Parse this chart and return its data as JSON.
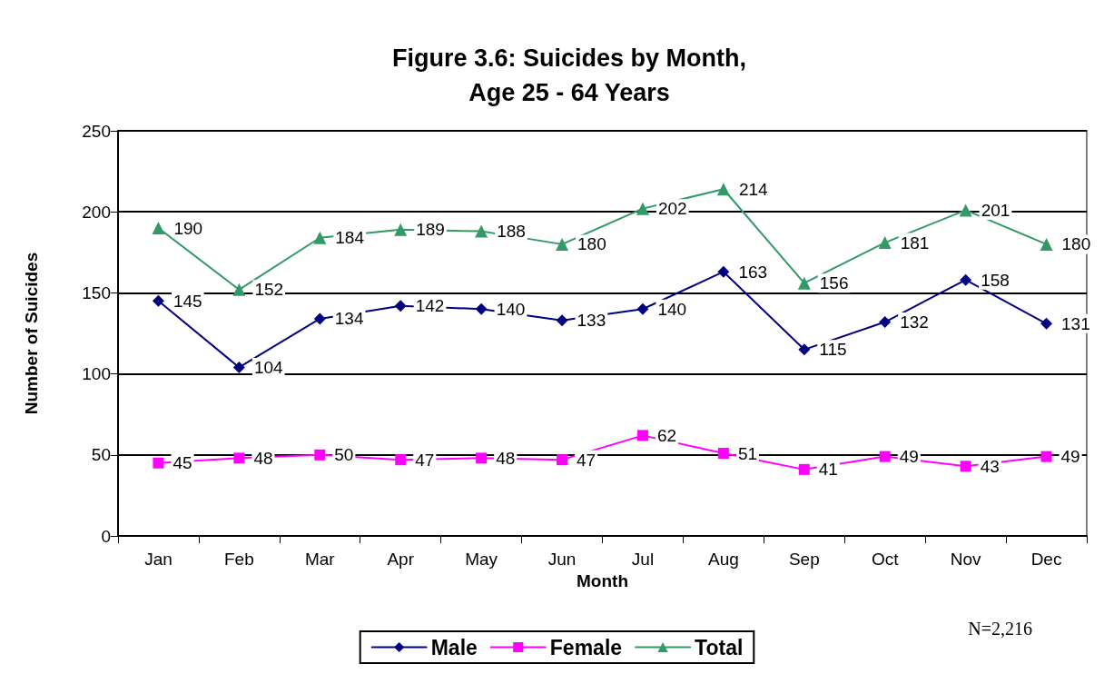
{
  "chart_data": {
    "type": "line",
    "title": "Figure 3.6: Suicides by Month,\nAge 25 - 64 Years",
    "xlabel": "Month",
    "ylabel": "Number of Suicides",
    "categories": [
      "Jan",
      "Feb",
      "Mar",
      "Apr",
      "May",
      "Jun",
      "Jul",
      "Aug",
      "Sep",
      "Oct",
      "Nov",
      "Dec"
    ],
    "series": [
      {
        "name": "Male",
        "color": "#000080",
        "marker": "diamond",
        "values": [
          145,
          104,
          134,
          142,
          140,
          133,
          140,
          163,
          115,
          132,
          158,
          131
        ]
      },
      {
        "name": "Female",
        "color": "#ff00ff",
        "marker": "square",
        "values": [
          45,
          48,
          50,
          47,
          48,
          47,
          62,
          51,
          41,
          49,
          43,
          49
        ]
      },
      {
        "name": "Total",
        "color": "#339966",
        "marker": "triangle",
        "values": [
          190,
          152,
          184,
          189,
          188,
          180,
          202,
          214,
          156,
          181,
          201,
          180
        ]
      }
    ],
    "ylim": [
      0,
      250
    ],
    "yticks": [
      0,
      50,
      100,
      150,
      200,
      250
    ],
    "grid": "y",
    "legend": "bottom",
    "data_labels": true,
    "line_style": "solid",
    "annotations": [
      "N=2,216"
    ]
  }
}
